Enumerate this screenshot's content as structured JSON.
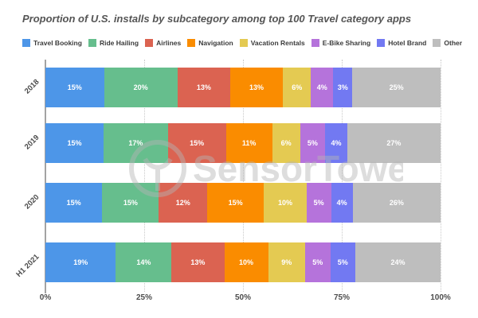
{
  "header": {
    "title": "Proportion of U.S. installs by subcategory among top 100 Travel category apps"
  },
  "watermark": {
    "text": "SensorTower"
  },
  "chart_data": {
    "type": "bar",
    "stacked": true,
    "orientation": "horizontal",
    "title": "Proportion of U.S. installs by subcategory among top 100 Travel category apps",
    "categories": [
      "2018",
      "2019",
      "2020",
      "H1 2021"
    ],
    "series": [
      {
        "name": "Travel Booking",
        "color": "#4D96E8",
        "values": [
          15,
          15,
          15,
          19
        ]
      },
      {
        "name": "Ride Hailing",
        "color": "#66BE8D",
        "values": [
          20,
          17,
          15,
          14
        ]
      },
      {
        "name": "Airlines",
        "color": "#DB6351",
        "values": [
          13,
          15,
          12,
          13
        ]
      },
      {
        "name": "Navigation",
        "color": "#FA8C00",
        "values": [
          13,
          11,
          15,
          10
        ]
      },
      {
        "name": "Vacation Rentals",
        "color": "#E4CA52",
        "values": [
          6,
          6,
          10,
          9
        ]
      },
      {
        "name": "E-Bike Sharing",
        "color": "#B573DB",
        "values": [
          4,
          5,
          5,
          5
        ]
      },
      {
        "name": "Hotel Brand",
        "color": "#7279F2",
        "values": [
          3,
          4,
          4,
          5
        ]
      },
      {
        "name": "Other",
        "color": "#BEBEBE",
        "values": [
          25,
          27,
          26,
          24
        ]
      }
    ],
    "x_ticks": [
      "0%",
      "25%",
      "50%",
      "75%",
      "100%"
    ],
    "xlim": [
      0,
      100
    ],
    "value_suffix": "%",
    "value_labels": true,
    "legend_position": "top",
    "grid": "dotted-vertical"
  }
}
